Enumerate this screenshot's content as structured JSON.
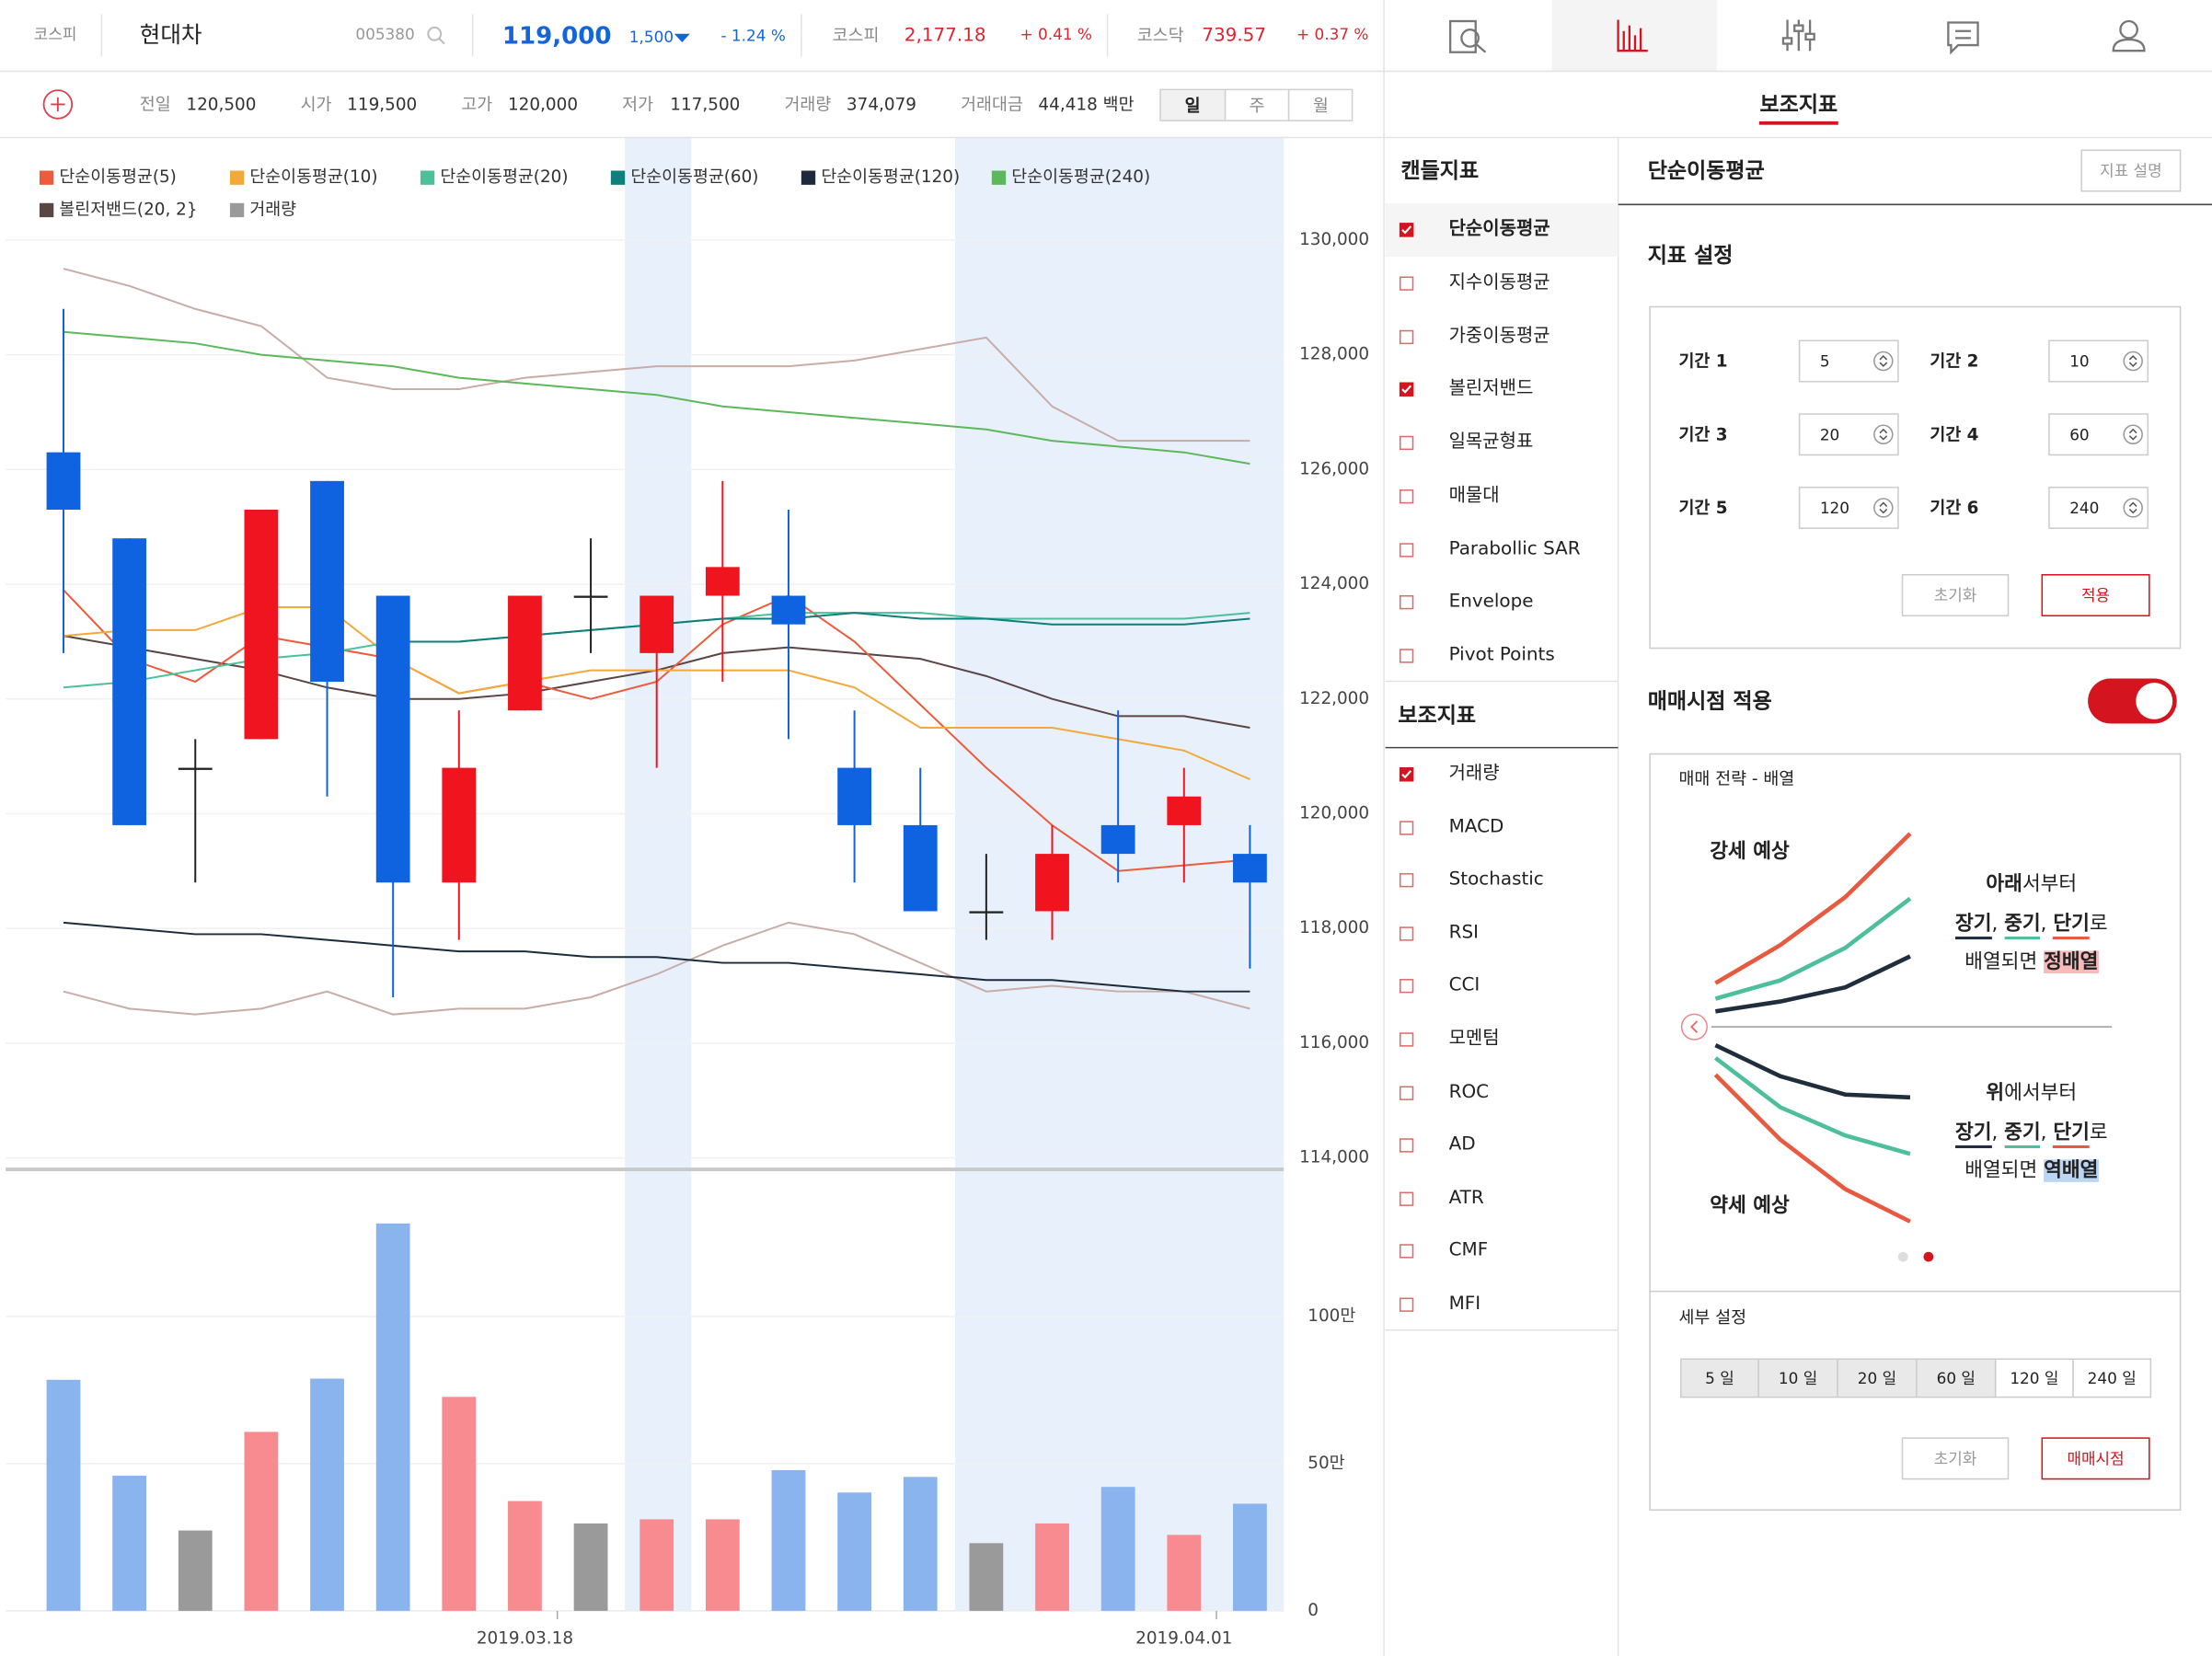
{
  "header": {
    "market": "코스피",
    "name": "현대차",
    "code": "005380",
    "price": "119,000",
    "change": "1,500",
    "change_pct": "- 1.24 %",
    "indices": [
      {
        "name": "코스피",
        "value": "2,177.18",
        "change": "+ 0.41 %"
      },
      {
        "name": "코스닥",
        "value": "739.57",
        "change": "+ 0.37 %"
      }
    ]
  },
  "quote": [
    {
      "label": "전일",
      "value": "120,500"
    },
    {
      "label": "시가",
      "value": "119,500"
    },
    {
      "label": "고가",
      "value": "120,000"
    },
    {
      "label": "저가",
      "value": "117,500"
    },
    {
      "label": "거래량",
      "value": "374,079"
    },
    {
      "label": "거래대금",
      "value": "44,418 백만"
    }
  ],
  "periods": {
    "items": [
      "일",
      "주",
      "월"
    ],
    "selected": 0
  },
  "chart_data": {
    "type": "candlestick",
    "categories": [
      null,
      null,
      null,
      null,
      null,
      null,
      null,
      "2019.03.18",
      null,
      null,
      null,
      null,
      null,
      null,
      null,
      null,
      null,
      "2019.04.01",
      null
    ],
    "open": [
      126300,
      124800,
      120800,
      121300,
      125800,
      123800,
      118800,
      121800,
      123800,
      122800,
      123800,
      123800,
      120800,
      119800,
      118300,
      118300,
      119800,
      119800,
      119300
    ],
    "high": [
      128800,
      124800,
      121300,
      125300,
      125800,
      123800,
      121800,
      123800,
      124800,
      123800,
      125800,
      125300,
      121800,
      120800,
      119300,
      119800,
      121800,
      120800,
      119800
    ],
    "low": [
      122800,
      119800,
      118800,
      121300,
      120300,
      116800,
      117800,
      121800,
      122800,
      120800,
      122300,
      121300,
      118800,
      118300,
      117800,
      117800,
      118800,
      118800,
      117300
    ],
    "close": [
      125300,
      119800,
      120800,
      125300,
      122300,
      118800,
      120800,
      123800,
      123800,
      123800,
      124300,
      123300,
      119800,
      118300,
      118300,
      119300,
      119300,
      120300,
      118800
    ],
    "up_color": "#f0141e",
    "down_color": "#0f62e0",
    "flat_color": "#222222",
    "ylim": [
      131800,
      113800
    ],
    "yticks": [
      {
        "value": 130000,
        "label": "130,000"
      },
      {
        "value": 128000,
        "label": "128,000"
      },
      {
        "value": 126000,
        "label": "126,000"
      },
      {
        "value": 124000,
        "label": "124,000"
      },
      {
        "value": 122000,
        "label": "122,000"
      },
      {
        "value": 120000,
        "label": "120,000"
      },
      {
        "value": 118000,
        "label": "118,000"
      },
      {
        "value": 116000,
        "label": "116,000"
      },
      {
        "value": 114000,
        "label": "114,000"
      }
    ],
    "grid": true,
    "series": [
      {
        "name": "단순이동평균(5)",
        "color": "#eb5b3c",
        "values": [
          123900,
          122700,
          122300,
          123100,
          122900,
          122700,
          122100,
          122300,
          122000,
          122300,
          123300,
          123800,
          123000,
          121900,
          120800,
          119800,
          119000,
          119100,
          119200
        ]
      },
      {
        "name": "단순이동평균(10)",
        "color": "#f2a93b",
        "values": [
          123100,
          123200,
          123200,
          123600,
          123600,
          122700,
          122100,
          122300,
          122500,
          122500,
          122500,
          122500,
          122200,
          121500,
          121500,
          121500,
          121300,
          121100,
          120600
        ]
      },
      {
        "name": "단순이동평균(20)",
        "color": "#4dbf9a",
        "values": [
          122200,
          122300,
          122500,
          122700,
          122800,
          123000,
          123000,
          123100,
          123200,
          123300,
          123400,
          123500,
          123500,
          123500,
          123400,
          123400,
          123400,
          123400,
          123500
        ]
      },
      {
        "name": "단순이동평균(60)",
        "color": "#0e7f7a",
        "values": [
          null,
          null,
          null,
          null,
          null,
          123000,
          123000,
          123100,
          123200,
          123300,
          123400,
          123400,
          123500,
          123400,
          123400,
          123300,
          123300,
          123300,
          123400
        ]
      },
      {
        "name": "단순이동평균(120)",
        "color": "#1c2b3c",
        "values": [
          118100,
          118000,
          117900,
          117900,
          117800,
          117700,
          117600,
          117600,
          117500,
          117500,
          117400,
          117400,
          117300,
          117200,
          117100,
          117100,
          117000,
          116900,
          116900
        ]
      },
      {
        "name": "단순이동평균(240)",
        "color": "#5cb85c",
        "values": [
          128400,
          128300,
          128200,
          128000,
          127900,
          127800,
          127600,
          127500,
          127400,
          127300,
          127100,
          127000,
          126900,
          126800,
          126700,
          126500,
          126400,
          126300,
          126100
        ]
      }
    ],
    "bollinger": {
      "name": "볼린저밴드(20, 2}",
      "color": "#5b4444",
      "band_color": "#c8aca6",
      "upper": [
        129500,
        129200,
        128800,
        128500,
        127600,
        127400,
        127400,
        127600,
        127700,
        127800,
        127800,
        127800,
        127900,
        128100,
        128300,
        127100,
        126500,
        126500,
        126500
      ],
      "middle": [
        123100,
        122900,
        122700,
        122500,
        122200,
        122000,
        122000,
        122100,
        122300,
        122500,
        122800,
        122900,
        122800,
        122700,
        122400,
        122000,
        121700,
        121700,
        121500
      ],
      "lower": [
        116900,
        116600,
        116500,
        116600,
        116900,
        116500,
        116600,
        116600,
        116800,
        117200,
        117700,
        118100,
        117900,
        117400,
        116900,
        117000,
        116900,
        116900,
        116600
      ]
    },
    "volume": {
      "name": "거래량",
      "color": "#9a9a9a",
      "up_color": "#f78b90",
      "down_color": "#8ab4ee",
      "flat_color": "#9a9a9a",
      "values": [
        785000,
        459000,
        273000,
        608000,
        789000,
        1316000,
        727000,
        373000,
        297000,
        311000,
        311000,
        478000,
        402000,
        455000,
        230000,
        297000,
        421000,
        258000,
        364000
      ],
      "ylim": [
        0,
        1500000
      ],
      "yticks": [
        0,
        {
          "value": 500000,
          "label": "50만"
        },
        {
          "value": 1000000,
          "label": "100만"
        }
      ]
    }
  },
  "panel": {
    "title": "보조지표",
    "candle_title": "캔들지표",
    "candle_items": [
      {
        "label": "단순이동평균",
        "checked": true
      },
      {
        "label": "지수이동평균",
        "checked": false
      },
      {
        "label": "가중이동평균",
        "checked": false
      },
      {
        "label": "볼린저밴드",
        "checked": true
      },
      {
        "label": "일목균형표",
        "checked": false
      },
      {
        "label": "매물대",
        "checked": false
      },
      {
        "label": "Parabollic SAR",
        "checked": false
      },
      {
        "label": "Envelope",
        "checked": false
      },
      {
        "label": "Pivot Points",
        "checked": false
      }
    ],
    "aux_title": "보조지표",
    "aux_items": [
      {
        "label": "거래량",
        "checked": true
      },
      {
        "label": "MACD",
        "checked": false
      },
      {
        "label": "Stochastic",
        "checked": false
      },
      {
        "label": "RSI",
        "checked": false
      },
      {
        "label": "CCI",
        "checked": false
      },
      {
        "label": "모멘텀",
        "checked": false
      },
      {
        "label": "ROC",
        "checked": false
      },
      {
        "label": "AD",
        "checked": false
      },
      {
        "label": "ATR",
        "checked": false
      },
      {
        "label": "CMF",
        "checked": false
      },
      {
        "label": "MFI",
        "checked": false
      }
    ],
    "detail": {
      "title": "단순이동평균",
      "help": "지표 설명",
      "settings_title": "지표 설정",
      "inputs": [
        {
          "label": "기간 1",
          "value": "5"
        },
        {
          "label": "기간 2",
          "value": "10"
        },
        {
          "label": "기간 3",
          "value": "20"
        },
        {
          "label": "기간 4",
          "value": "60"
        },
        {
          "label": "기간 5",
          "value": "120"
        },
        {
          "label": "기간 6",
          "value": "240"
        }
      ],
      "reset": "초기화",
      "apply": "적용",
      "signal_title": "매매시점 적용",
      "signal_on": true,
      "strategy_title": "매매 전략 - 배열",
      "bull": {
        "title": "강세 예상",
        "lines": [
          [
            "아래",
            "서부터"
          ],
          [
            "장기",
            ", ",
            "중기",
            ", ",
            "단기",
            "로"
          ],
          [
            "배열되면 ",
            "정배열"
          ]
        ]
      },
      "bear": {
        "title": "약세 예상",
        "lines": [
          [
            "위",
            "에서부터"
          ],
          [
            "장기",
            ", ",
            "중기",
            ", ",
            "단기",
            "로"
          ],
          [
            "배열되면 ",
            "역배열"
          ]
        ]
      },
      "detail_title": "세부 설정",
      "days": [
        {
          "label": "5 일",
          "selected": true
        },
        {
          "label": "10 일",
          "selected": true
        },
        {
          "label": "20 일",
          "selected": true
        },
        {
          "label": "60 일",
          "selected": true
        },
        {
          "label": "120 일",
          "selected": false
        },
        {
          "label": "240 일",
          "selected": false
        }
      ],
      "reset2": "초기화",
      "signal": "매매시점"
    }
  }
}
